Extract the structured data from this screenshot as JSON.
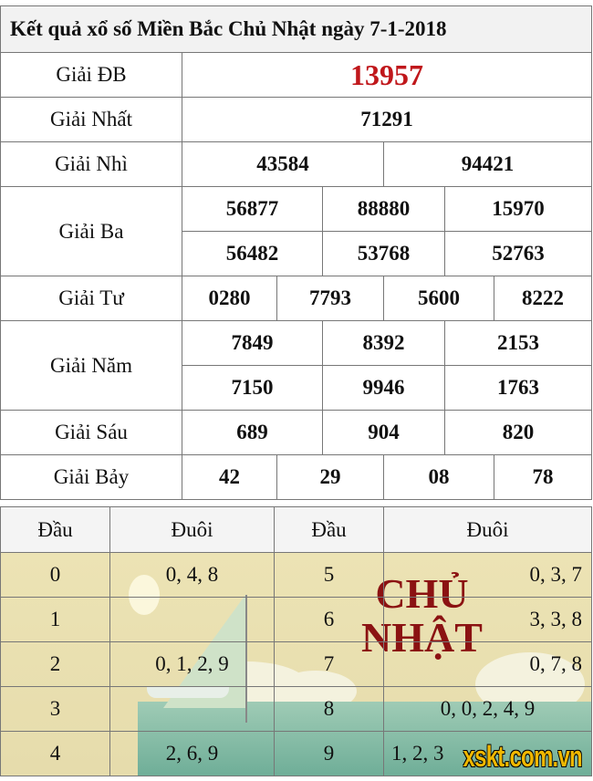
{
  "title": "Kết quả xổ số Miền Bắc Chủ Nhật ngày 7-1-2018",
  "colors": {
    "special_prize": "#c0171b",
    "stamp": "#8b1212",
    "logo": "#f0b800"
  },
  "prizes": [
    {
      "label": "Giải ĐB",
      "rows": [
        [
          "13957"
        ]
      ]
    },
    {
      "label": "Giải Nhất",
      "rows": [
        [
          "71291"
        ]
      ]
    },
    {
      "label": "Giải Nhì",
      "rows": [
        [
          "43584",
          "94421"
        ]
      ]
    },
    {
      "label": "Giải Ba",
      "rows": [
        [
          "56877",
          "88880",
          "15970"
        ],
        [
          "56482",
          "53768",
          "52763"
        ]
      ]
    },
    {
      "label": "Giải Tư",
      "rows": [
        [
          "0280",
          "7793",
          "5600",
          "8222"
        ]
      ]
    },
    {
      "label": "Giải Năm",
      "rows": [
        [
          "7849",
          "8392",
          "2153"
        ],
        [
          "7150",
          "9946",
          "1763"
        ]
      ]
    },
    {
      "label": "Giải Sáu",
      "rows": [
        [
          "689",
          "904",
          "820"
        ]
      ]
    },
    {
      "label": "Giải Bảy",
      "rows": [
        [
          "42",
          "29",
          "08",
          "78"
        ]
      ]
    }
  ],
  "loto": {
    "headers": [
      "Đầu",
      "Đuôi",
      "Đầu",
      "Đuôi"
    ],
    "rows": [
      [
        "0",
        "0, 4, 8",
        "5",
        "0, 3, 7"
      ],
      [
        "1",
        "",
        "6",
        "3, 3, 8"
      ],
      [
        "2",
        "0, 1, 2, 9",
        "7",
        "0, 7, 8"
      ],
      [
        "3",
        "",
        "8",
        "0, 0, 2, 4, 9"
      ],
      [
        "4",
        "2, 6, 9",
        "9",
        "1, 2, 3"
      ]
    ]
  },
  "watermark": {
    "stamp_line1": "CHỦ",
    "stamp_line2": "NHẬT",
    "logo": "xskt.com.vn"
  }
}
